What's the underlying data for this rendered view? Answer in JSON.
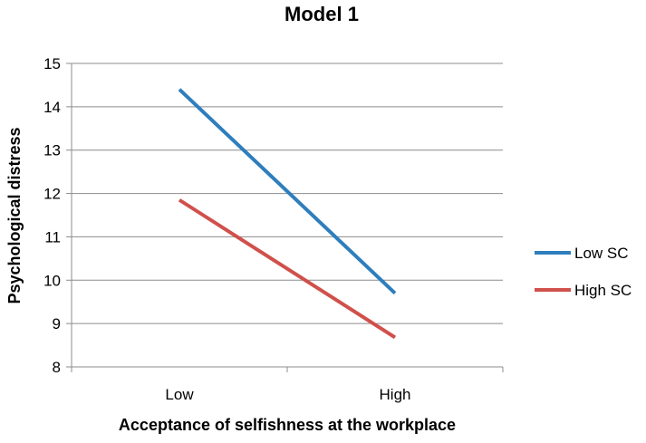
{
  "chart_data": {
    "type": "line",
    "title": "Model 1",
    "xlabel": "Acceptance of selfishness at the workplace",
    "ylabel": "Psychological distress",
    "categories": [
      "Low",
      "High"
    ],
    "ylim": [
      8,
      15
    ],
    "yticks": [
      8,
      9,
      10,
      11,
      12,
      13,
      14,
      15
    ],
    "grid": true,
    "legend_position": "right",
    "series": [
      {
        "name": "Low SC",
        "values": [
          14.4,
          9.7
        ],
        "color": "#2e7ebd"
      },
      {
        "name": "High SC",
        "values": [
          11.85,
          8.68
        ],
        "color": "#d0504b"
      }
    ]
  }
}
